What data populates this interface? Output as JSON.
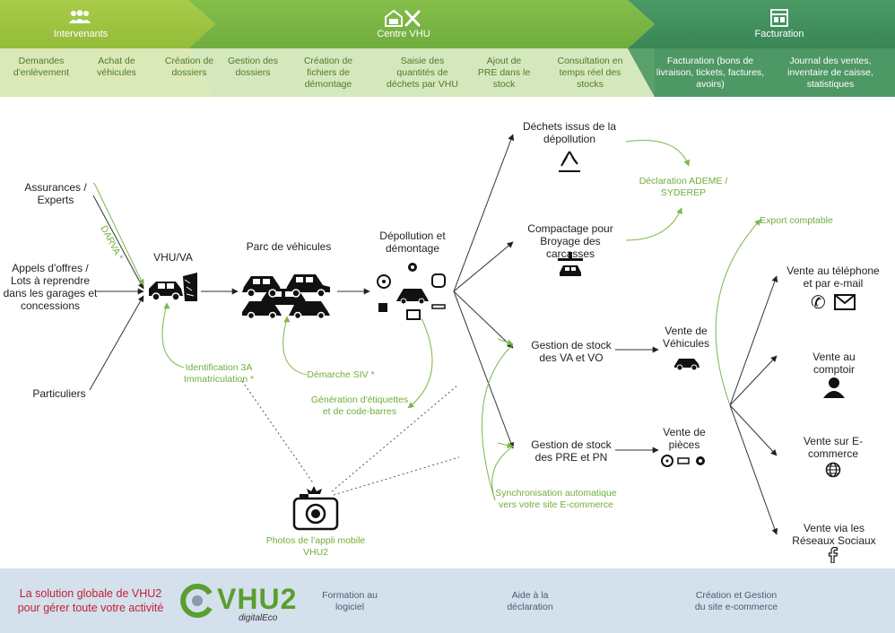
{
  "header": {
    "bands": [
      {
        "title": "Intervenants",
        "icon": "people-icon"
      },
      {
        "title": "Centre VHU",
        "icon": "garage-tools-icon"
      },
      {
        "title": "Facturation",
        "icon": "shop-icon"
      }
    ],
    "steps": [
      "Demandes d'enlèvement",
      "Achat de véhicules",
      "Création de dossiers",
      "Gestion des dossiers",
      "Création de fichiers de démontage",
      "Saisie des quantités de déchets par VHU",
      "Ajout de PRE dans le stock",
      "Consultation en temps réel des stocks",
      "Facturation (bons de livraison, tickets, factures, avoirs)",
      "Journal des ventes, inventaire de caisse, statistiques"
    ]
  },
  "diagram": {
    "sources": {
      "assurances": "Assurances / Experts",
      "appels": "Appels d'offres / Lots à reprendre dans les garages et concessions",
      "particuliers": "Particuliers"
    },
    "vhu": "VHU/VA",
    "parc": "Parc de véhicules",
    "depollution": "Dépollution et démontage",
    "dechets": "Déchets issus de la dépollution",
    "compactage": "Compactage pour Broyage des carcasses",
    "stock_va": "Gestion de stock des VA et VO",
    "stock_pre": "Gestion de stock des PRE et PN",
    "vente_vehicules": "Vente de Véhicules",
    "vente_pieces": "Vente de pièces",
    "channels": [
      {
        "label": "Vente au téléphone et par e-mail",
        "icons": [
          "phone-icon",
          "envelope-icon"
        ]
      },
      {
        "label": "Vente au comptoir",
        "icons": [
          "person-icon"
        ]
      },
      {
        "label": "Vente sur E-commerce",
        "icons": [
          "globe-icon"
        ]
      },
      {
        "label": "Vente via les Réseaux Sociaux",
        "icons": [
          "facebook-icon"
        ]
      }
    ],
    "notes": {
      "darva": "DARVA *",
      "identification": "Identification 3A Immatriculation *",
      "siv": "Démarche SIV *",
      "etiquettes": "Génération d'étiquettes et de code-barres",
      "declaration": "Déclaration ADEME / SYDEREP",
      "export": "Export comptable",
      "sync": "Synchronisation automatique vers votre site E-commerce",
      "photos": "Photos de l'appli mobile VHU2"
    }
  },
  "footer": {
    "tagline": "La solution globale de VHU2 pour gérer toute votre activité",
    "logo": "VHU2",
    "logo_sub": "digitalEco",
    "items": [
      "Formation au logiciel",
      "Aide à la déclaration",
      "Création et Gestion du site e-commerce"
    ]
  },
  "colors": {
    "band1": "#9cc23e",
    "band2": "#7ab743",
    "band3": "#3f8f5c",
    "note_green": "#6fae3a",
    "footer_bg": "#d4e0ec",
    "tagline_red": "#c21f32"
  }
}
